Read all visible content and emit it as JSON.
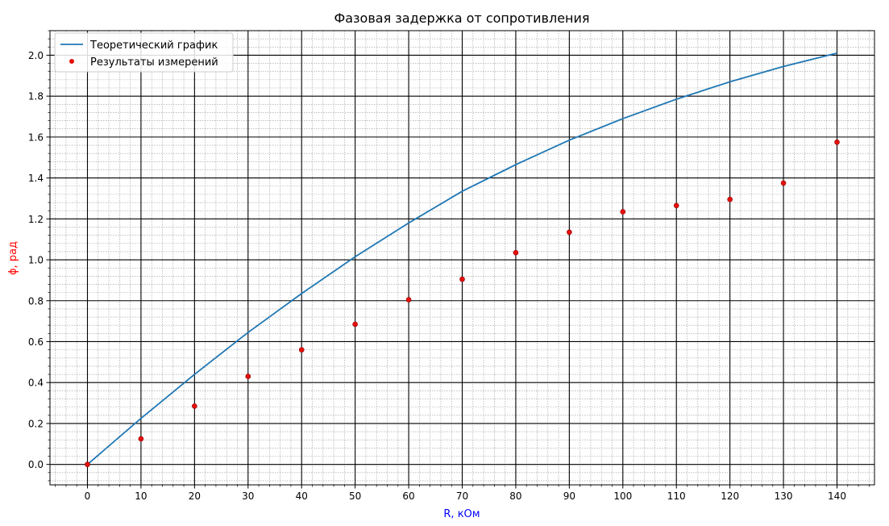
{
  "chart_data": {
    "type": "line+scatter",
    "title": "Фазовая задержка от сопротивления",
    "xlabel": "R, кОм",
    "ylabel": "ϕ, рад",
    "xlabel_color": "#0000ff",
    "ylabel_color": "#ff0000",
    "xlim": [
      -7,
      147
    ],
    "ylim": [
      -0.1,
      2.12
    ],
    "x_ticks": [
      0,
      10,
      20,
      30,
      40,
      50,
      60,
      70,
      80,
      90,
      100,
      110,
      120,
      130,
      140
    ],
    "y_ticks": [
      0.0,
      0.2,
      0.4,
      0.6,
      0.8,
      1.0,
      1.2,
      1.4,
      1.6,
      1.8,
      2.0
    ],
    "y_tick_labels": [
      "0.0",
      "0.2",
      "0.4",
      "0.6",
      "0.8",
      "1.0",
      "1.2",
      "1.4",
      "1.6",
      "1.8",
      "2.0"
    ],
    "grid": {
      "major": true,
      "minor": true,
      "major_color": "#000000",
      "minor_color": "#9a9a9a"
    },
    "legend": {
      "location": "top-left",
      "entries": [
        "Теоретический график",
        "Результаты измерений"
      ]
    },
    "series": [
      {
        "name": "Теоретический график",
        "kind": "line",
        "color": "#1f77b4",
        "x": [
          0,
          10,
          20,
          30,
          40,
          50,
          60,
          70,
          80,
          90,
          100,
          110,
          120,
          130,
          140
        ],
        "y": [
          0.0,
          0.225,
          0.44,
          0.645,
          0.835,
          1.015,
          1.18,
          1.335,
          1.465,
          1.585,
          1.69,
          1.785,
          1.87,
          1.945,
          2.01
        ]
      },
      {
        "name": "Результаты измерений",
        "kind": "scatter",
        "color": "#e8100c",
        "x": [
          0,
          10,
          20,
          30,
          40,
          50,
          60,
          70,
          80,
          90,
          100,
          110,
          120,
          130,
          140
        ],
        "y": [
          0.0,
          0.125,
          0.285,
          0.43,
          0.56,
          0.685,
          0.805,
          0.905,
          1.035,
          1.135,
          1.235,
          1.265,
          1.295,
          1.375,
          1.575
        ]
      }
    ]
  }
}
